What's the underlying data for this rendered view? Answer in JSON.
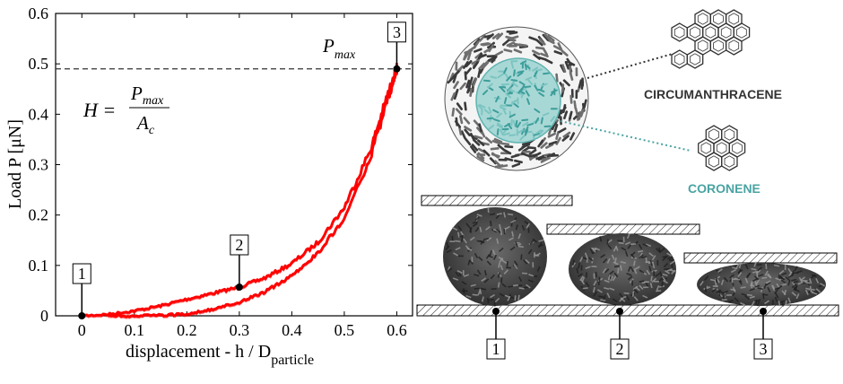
{
  "chart_data": {
    "type": "line",
    "xlabel": "displacement - h / D",
    "xlabel_sub": "particle",
    "ylabel": "Load P [μN]",
    "x_ticks": [
      "0",
      "0.1",
      "0.2",
      "0.3",
      "0.4",
      "0.5",
      "0.6"
    ],
    "y_ticks": [
      "0",
      "0.1",
      "0.2",
      "0.3",
      "0.4",
      "0.5",
      "0.6"
    ],
    "xlim": [
      -0.05,
      0.63
    ],
    "ylim": [
      0,
      0.6
    ],
    "series": [
      {
        "color": "#ff0000",
        "x": [
          0,
          0.05,
          0.1,
          0.15,
          0.2,
          0.25,
          0.3,
          0.35,
          0.4,
          0.45,
          0.5,
          0.55,
          0.58,
          0.6,
          0.6,
          0.58,
          0.55,
          0.5,
          0.45,
          0.4,
          0.35,
          0.3,
          0.25,
          0.2,
          0.15,
          0.1,
          0.05
        ],
        "y": [
          0,
          0.003,
          0.01,
          0.02,
          0.033,
          0.045,
          0.057,
          0.076,
          0.104,
          0.146,
          0.215,
          0.33,
          0.43,
          0.49,
          0.49,
          0.42,
          0.315,
          0.195,
          0.125,
          0.08,
          0.048,
          0.027,
          0.013,
          0.004,
          0.001,
          0,
          0
        ]
      }
    ],
    "points": [
      {
        "label": "1",
        "x": 0,
        "y": 0
      },
      {
        "label": "2",
        "x": 0.3,
        "y": 0.057
      },
      {
        "label": "3",
        "x": 0.6,
        "y": 0.49
      }
    ],
    "hline": {
      "y": 0.49,
      "label_main": "P",
      "label_sub": "max"
    },
    "annotation": {
      "lhs": "H =",
      "num_main": "P",
      "num_sub": "max",
      "den_main": "A",
      "den_sub": "c"
    }
  },
  "diagram": {
    "molecule_outer": {
      "label": "CIRCUMANTHRACENE",
      "color": "#333333"
    },
    "molecule_inner": {
      "label": "CORONENE",
      "color": "#4aa3a3"
    },
    "stages": [
      "1",
      "2",
      "3"
    ]
  }
}
